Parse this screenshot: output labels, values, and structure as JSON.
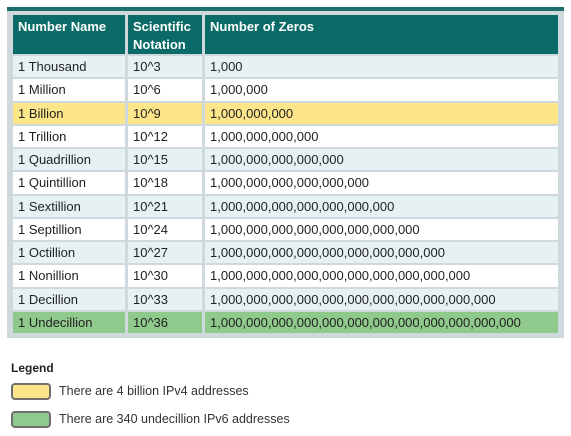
{
  "table": {
    "headers": [
      "Number Name",
      "Scientific Notation",
      "Number of Zeros"
    ],
    "rows": [
      [
        "1 Thousand",
        "10^3",
        "1,000"
      ],
      [
        "1 Million",
        "10^6",
        "1,000,000"
      ],
      [
        "1 Billion",
        "10^9",
        "1,000,000,000"
      ],
      [
        "1 Trillion",
        "10^12",
        "1,000,000,000,000"
      ],
      [
        "1 Quadrillion",
        "10^15",
        "1,000,000,000,000,000"
      ],
      [
        "1 Quintillion",
        "10^18",
        "1,000,000,000,000,000,000"
      ],
      [
        "1 Sextillion",
        "10^21",
        "1,000,000,000,000,000,000,000"
      ],
      [
        "1 Septillion",
        "10^24",
        "1,000,000,000,000,000,000,000,000"
      ],
      [
        "1 Octillion",
        "10^27",
        "1,000,000,000,000,000,000,000,000,000"
      ],
      [
        "1 Nonillion",
        "10^30",
        "1,000,000,000,000,000,000,000,000,000,000"
      ],
      [
        "1 Decillion",
        "10^33",
        "1,000,000,000,000,000,000,000,000,000,000,000"
      ],
      [
        "1 Undecillion",
        "10^36",
        "1,000,000,000,000,000,000,000,000,000,000,000,000"
      ]
    ]
  },
  "legend": {
    "title": "Legend",
    "items": [
      {
        "color": "#fde68a",
        "text": "There are 4 billion IPv4 addresses"
      },
      {
        "color": "#8fc98c",
        "text": "There are 340 undecillion IPv6 addresses"
      }
    ]
  },
  "colors": {
    "header_bg": "#0b6b68",
    "zebra": "#e6f1f3",
    "ipv4_highlight": "#fde68a",
    "ipv6_highlight": "#8fc98c"
  }
}
